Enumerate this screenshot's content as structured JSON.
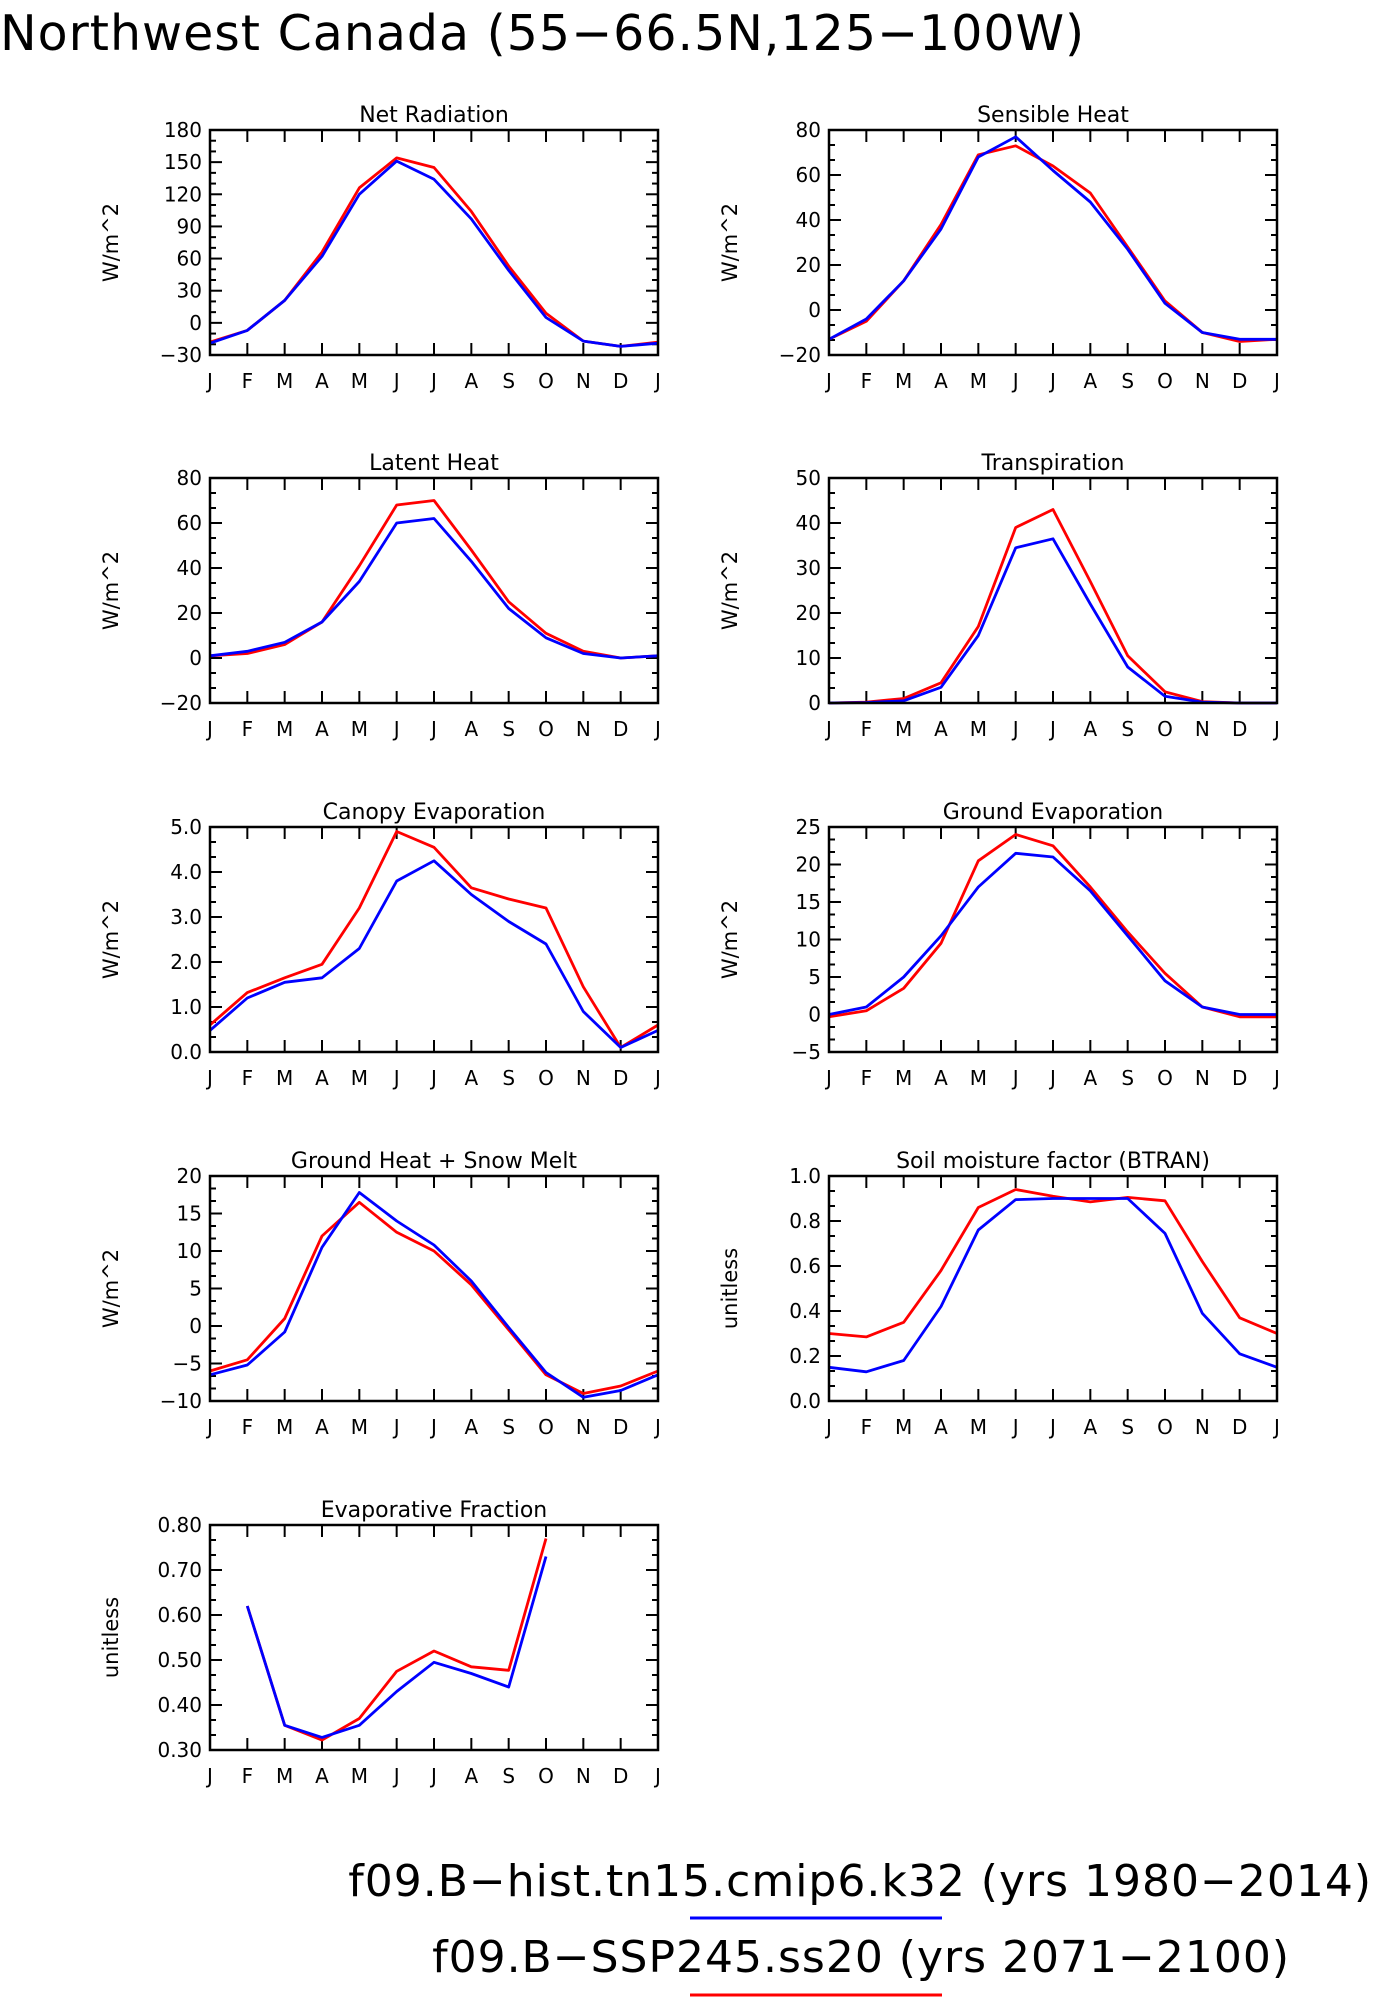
{
  "title": "Northwest Canada (55−66.5N,125−100W)",
  "legend": [
    {
      "label": "f09.B−hist.tn15.cmip6.k32 (yrs 1980−2014)",
      "color": "#0000ff"
    },
    {
      "label": "f09.B−SSP245.ss20 (yrs 2071−2100)",
      "color": "#ff0000"
    }
  ],
  "chart_data": [
    {
      "type": "line",
      "title": "Net Radiation",
      "ylabel": "W/m^2",
      "categories": [
        "J",
        "F",
        "M",
        "A",
        "M",
        "J",
        "J",
        "A",
        "S",
        "O",
        "N",
        "D",
        "J"
      ],
      "ylim": [
        -30,
        180
      ],
      "yticks": [
        "−30",
        "0",
        "30",
        "60",
        "90",
        "120",
        "150",
        "180"
      ],
      "series": [
        {
          "color": "#ff0000",
          "values": [
            -18,
            -7,
            21,
            66,
            126,
            154,
            145,
            104,
            53,
            9,
            -17,
            -22,
            -18
          ]
        },
        {
          "color": "#0000ff",
          "values": [
            -19,
            -7,
            21,
            62,
            120,
            151,
            134,
            97,
            49,
            5,
            -17,
            -22,
            -19
          ]
        }
      ]
    },
    {
      "type": "line",
      "title": "Sensible Heat",
      "ylabel": "W/m^2",
      "categories": [
        "J",
        "F",
        "M",
        "A",
        "M",
        "J",
        "J",
        "A",
        "S",
        "O",
        "N",
        "D",
        "J"
      ],
      "ylim": [
        -20,
        80
      ],
      "yticks": [
        "−20",
        "0",
        "20",
        "40",
        "60",
        "80"
      ],
      "series": [
        {
          "color": "#ff0000",
          "values": [
            -13,
            -5,
            13,
            38,
            69,
            73,
            64,
            52,
            28,
            4,
            -10,
            -14,
            -13
          ]
        },
        {
          "color": "#0000ff",
          "values": [
            -13,
            -4,
            13,
            36,
            68,
            77,
            62,
            48,
            27,
            3,
            -10,
            -13,
            -13
          ]
        }
      ]
    },
    {
      "type": "line",
      "title": "Latent Heat",
      "ylabel": "W/m^2",
      "categories": [
        "J",
        "F",
        "M",
        "A",
        "M",
        "J",
        "J",
        "A",
        "S",
        "O",
        "N",
        "D",
        "J"
      ],
      "ylim": [
        -20,
        80
      ],
      "yticks": [
        "−20",
        "0",
        "20",
        "40",
        "60",
        "80"
      ],
      "series": [
        {
          "color": "#ff0000",
          "values": [
            1,
            2,
            6,
            16,
            41,
            68,
            70,
            48,
            25,
            11,
            3,
            0,
            1
          ]
        },
        {
          "color": "#0000ff",
          "values": [
            1,
            3,
            7,
            16,
            34,
            60,
            62,
            43,
            22,
            9,
            2,
            0,
            1
          ]
        }
      ]
    },
    {
      "type": "line",
      "title": "Transpiration",
      "ylabel": "W/m^2",
      "categories": [
        "J",
        "F",
        "M",
        "A",
        "M",
        "J",
        "J",
        "A",
        "S",
        "O",
        "N",
        "D",
        "J"
      ],
      "ylim": [
        0,
        50
      ],
      "yticks": [
        "0",
        "10",
        "20",
        "30",
        "40",
        "50"
      ],
      "series": [
        {
          "color": "#ff0000",
          "values": [
            0,
            0.2,
            1,
            4.5,
            17,
            39,
            43,
            27,
            10.5,
            2.5,
            0.3,
            0,
            0
          ]
        },
        {
          "color": "#0000ff",
          "values": [
            0,
            0.1,
            0.5,
            3.5,
            15,
            34.5,
            36.5,
            22,
            8,
            1.5,
            0.2,
            0,
            0
          ]
        }
      ]
    },
    {
      "type": "line",
      "title": "Canopy Evaporation",
      "ylabel": "W/m^2",
      "categories": [
        "J",
        "F",
        "M",
        "A",
        "M",
        "J",
        "J",
        "A",
        "S",
        "O",
        "N",
        "D",
        "J"
      ],
      "ylim": [
        0,
        5
      ],
      "yticks": [
        "0.0",
        "1.0",
        "2.0",
        "3.0",
        "4.0",
        "5.0"
      ],
      "series": [
        {
          "color": "#ff0000",
          "values": [
            0.6,
            1.32,
            1.65,
            1.95,
            3.2,
            4.9,
            4.55,
            3.65,
            3.4,
            3.2,
            1.45,
            0.1,
            0.6
          ]
        },
        {
          "color": "#0000ff",
          "values": [
            0.48,
            1.2,
            1.55,
            1.65,
            2.3,
            3.8,
            4.25,
            3.5,
            2.9,
            2.4,
            0.9,
            0.1,
            0.48
          ]
        }
      ]
    },
    {
      "type": "line",
      "title": "Ground Evaporation",
      "ylabel": "W/m^2",
      "categories": [
        "J",
        "F",
        "M",
        "A",
        "M",
        "J",
        "J",
        "A",
        "S",
        "O",
        "N",
        "D",
        "J"
      ],
      "ylim": [
        -5,
        25
      ],
      "yticks": [
        "−5",
        "0",
        "5",
        "10",
        "15",
        "20",
        "25"
      ],
      "series": [
        {
          "color": "#ff0000",
          "values": [
            -0.3,
            0.5,
            3.5,
            9.5,
            20.5,
            24,
            22.5,
            17,
            11,
            5.5,
            1,
            -0.3,
            -0.3
          ]
        },
        {
          "color": "#0000ff",
          "values": [
            0,
            1,
            5,
            10.5,
            17,
            21.5,
            21,
            16.5,
            10.5,
            4.5,
            1,
            0,
            0
          ]
        }
      ]
    },
    {
      "type": "line",
      "title": "Ground Heat + Snow Melt",
      "ylabel": "W/m^2",
      "categories": [
        "J",
        "F",
        "M",
        "A",
        "M",
        "J",
        "J",
        "A",
        "S",
        "O",
        "N",
        "D",
        "J"
      ],
      "ylim": [
        -10,
        20
      ],
      "yticks": [
        "−10",
        "−5",
        "0",
        "5",
        "10",
        "15",
        "20"
      ],
      "series": [
        {
          "color": "#ff0000",
          "values": [
            -6,
            -4.5,
            1,
            12,
            16.5,
            12.5,
            10,
            5.5,
            -0.5,
            -6.5,
            -9,
            -8,
            -6
          ]
        },
        {
          "color": "#0000ff",
          "values": [
            -6.5,
            -5.2,
            -0.8,
            10.5,
            17.8,
            14,
            10.8,
            6,
            -0.2,
            -6.2,
            -9.5,
            -8.6,
            -6.5
          ]
        }
      ]
    },
    {
      "type": "line",
      "title": "Soil moisture factor (BTRAN)",
      "ylabel": "unitless",
      "categories": [
        "J",
        "F",
        "M",
        "A",
        "M",
        "J",
        "J",
        "A",
        "S",
        "O",
        "N",
        "D",
        "J"
      ],
      "ylim": [
        0,
        1
      ],
      "yticks": [
        "0.0",
        "0.2",
        "0.4",
        "0.6",
        "0.8",
        "1.0"
      ],
      "series": [
        {
          "color": "#ff0000",
          "values": [
            0.3,
            0.285,
            0.35,
            0.58,
            0.86,
            0.94,
            0.91,
            0.885,
            0.905,
            0.89,
            0.62,
            0.37,
            0.3
          ]
        },
        {
          "color": "#0000ff",
          "values": [
            0.15,
            0.13,
            0.18,
            0.42,
            0.76,
            0.895,
            0.9,
            0.9,
            0.9,
            0.745,
            0.39,
            0.21,
            0.15
          ]
        }
      ]
    },
    {
      "type": "line",
      "title": "Evaporative Fraction",
      "ylabel": "unitless",
      "categories": [
        "J",
        "F",
        "M",
        "A",
        "M",
        "J",
        "J",
        "A",
        "S",
        "O",
        "N",
        "D",
        "J"
      ],
      "ylim": [
        0.3,
        0.8
      ],
      "yticks": [
        "0.30",
        "0.40",
        "0.50",
        "0.60",
        "0.70",
        "0.80"
      ],
      "series": [
        {
          "color": "#ff0000",
          "values": [
            null,
            0.62,
            0.355,
            0.322,
            0.37,
            0.475,
            0.52,
            0.485,
            0.477,
            0.77,
            null,
            null,
            null
          ]
        },
        {
          "color": "#0000ff",
          "values": [
            null,
            0.62,
            0.355,
            0.328,
            0.355,
            0.43,
            0.495,
            0.47,
            0.44,
            0.73,
            null,
            null,
            null
          ]
        }
      ]
    }
  ]
}
